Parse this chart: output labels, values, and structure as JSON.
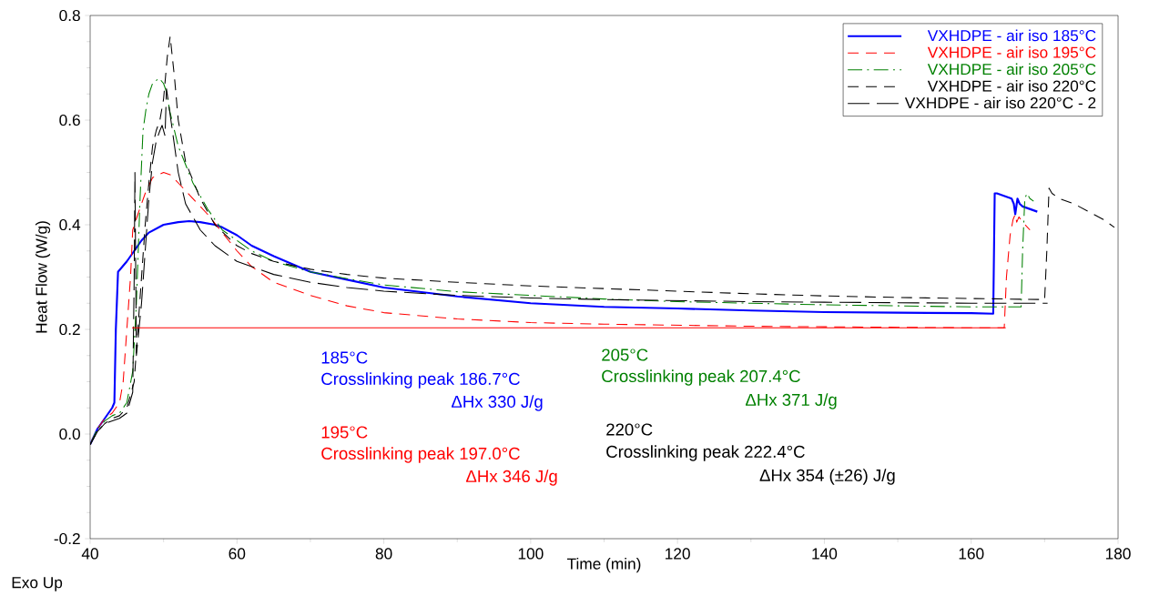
{
  "chart_data": {
    "type": "line",
    "xlabel": "Time (min)",
    "ylabel": "Heat Flow (W/g)",
    "xlim": [
      40,
      180
    ],
    "ylim": [
      -0.2,
      0.8
    ],
    "xticks": [
      40,
      60,
      80,
      100,
      120,
      140,
      160,
      180
    ],
    "yticks": [
      -0.2,
      {
        "value": 0,
        "label": "0.0"
      },
      0.2,
      0.4,
      0.6,
      0.8
    ],
    "grid": false,
    "legend": "top right",
    "marker": "none",
    "series": [
      {
        "name": "VXHDPE - air iso 185°C",
        "color": "#0000ff",
        "line_style": "solid",
        "x": [
          40,
          41,
          42,
          43,
          43.3,
          43.5,
          43.8,
          45,
          46,
          47,
          48,
          50,
          52,
          53.5,
          55,
          57,
          58,
          60,
          62,
          65,
          70,
          75,
          80,
          90,
          100,
          110,
          120,
          130,
          140,
          150,
          160,
          163,
          163.2,
          163.5,
          165.5,
          165.8,
          166.0,
          166.3,
          166.6,
          167,
          169
        ],
        "values": [
          -0.02,
          0.01,
          0.03,
          0.05,
          0.06,
          0.2,
          0.31,
          0.33,
          0.35,
          0.37,
          0.385,
          0.4,
          0.405,
          0.407,
          0.405,
          0.4,
          0.395,
          0.38,
          0.36,
          0.34,
          0.31,
          0.295,
          0.28,
          0.263,
          0.25,
          0.243,
          0.24,
          0.236,
          0.233,
          0.232,
          0.231,
          0.23,
          0.46,
          0.46,
          0.45,
          0.44,
          0.42,
          0.45,
          0.44,
          0.435,
          0.425
        ]
      },
      {
        "name": "VXHDPE - air iso 195°C",
        "color": "#ff0000",
        "line_style": "dashed",
        "x": [
          40,
          41,
          42,
          43,
          44,
          44.5,
          45,
          45.5,
          45.8,
          46.5,
          47.5,
          48.5,
          50,
          51,
          52,
          54,
          56,
          58,
          60,
          62,
          65,
          70,
          75,
          80,
          90,
          100,
          110,
          120,
          130,
          140,
          150,
          160,
          164.5,
          164.8,
          165.3,
          165.7,
          166.0,
          166.2,
          166.5,
          167,
          168
        ],
        "values": [
          -0.02,
          0.01,
          0.03,
          0.04,
          0.06,
          0.1,
          0.2,
          0.3,
          0.39,
          0.42,
          0.46,
          0.49,
          0.5,
          0.495,
          0.48,
          0.45,
          0.42,
          0.385,
          0.35,
          0.32,
          0.29,
          0.265,
          0.245,
          0.232,
          0.22,
          0.213,
          0.21,
          0.208,
          0.206,
          0.205,
          0.204,
          0.203,
          0.203,
          0.3,
          0.38,
          0.41,
          0.42,
          0.405,
          0.415,
          0.405,
          0.39
        ]
      },
      {
        "name": "VXHDPE - air iso 205°C",
        "color": "#008000",
        "line_style": "dashdot",
        "x": [
          40,
          41,
          42,
          43,
          44,
          45,
          45.8,
          46.3,
          46.8,
          47.2,
          47.6,
          48,
          48.5,
          49.4,
          50,
          50.5,
          50.8,
          52,
          54,
          56,
          58,
          60,
          62,
          65,
          70,
          75,
          80,
          90,
          100,
          110,
          120,
          130,
          140,
          150,
          160,
          166.8,
          167.0,
          167.3,
          167.6,
          168,
          168.5
        ],
        "values": [
          -0.02,
          0.01,
          0.025,
          0.035,
          0.04,
          0.06,
          0.12,
          0.25,
          0.45,
          0.58,
          0.62,
          0.65,
          0.67,
          0.68,
          0.67,
          0.65,
          0.62,
          0.55,
          0.48,
          0.43,
          0.39,
          0.37,
          0.35,
          0.33,
          0.31,
          0.297,
          0.285,
          0.272,
          0.265,
          0.258,
          0.253,
          0.25,
          0.247,
          0.245,
          0.243,
          0.243,
          0.35,
          0.45,
          0.46,
          0.45,
          0.445
        ]
      },
      {
        "name": "VXHDPE - air iso 220°C",
        "color": "#000000",
        "line_style": "dashed",
        "x": [
          40,
          41,
          42,
          43,
          44,
          45,
          46,
          46.5,
          47,
          47.5,
          48,
          48.5,
          49,
          49.5,
          50,
          50.5,
          50.9,
          51.5,
          52,
          53,
          55,
          57,
          60,
          62,
          65,
          70,
          75,
          80,
          90,
          100,
          110,
          120,
          130,
          140,
          150,
          160,
          170,
          170.3,
          170.6,
          171,
          172,
          174,
          176,
          178,
          179.5
        ],
        "values": [
          -0.02,
          0.005,
          0.02,
          0.03,
          0.035,
          0.05,
          0.1,
          0.2,
          0.3,
          0.4,
          0.48,
          0.55,
          0.58,
          0.6,
          0.64,
          0.72,
          0.76,
          0.68,
          0.6,
          0.52,
          0.45,
          0.4,
          0.36,
          0.345,
          0.33,
          0.315,
          0.305,
          0.298,
          0.29,
          0.283,
          0.278,
          0.273,
          0.268,
          0.264,
          0.261,
          0.259,
          0.257,
          0.35,
          0.47,
          0.46,
          0.45,
          0.44,
          0.425,
          0.41,
          0.395
        ]
      },
      {
        "name": "VXHDPE - air iso 220°C - 2",
        "color": "#000000",
        "line_style": "longdash",
        "x": [
          40,
          41,
          42,
          43,
          44,
          45,
          45.8,
          46.0,
          46.1,
          46.3,
          47,
          47.5,
          48,
          48.5,
          49,
          49.5,
          49.8,
          50.2,
          50.4,
          50.8,
          51.5,
          52,
          53,
          55,
          57,
          60,
          62,
          65,
          70,
          75,
          80,
          90,
          100,
          110,
          120,
          130,
          140,
          150,
          160,
          170,
          170.4
        ],
        "values": [
          -0.02,
          0.005,
          0.02,
          0.025,
          0.03,
          0.04,
          0.08,
          0.3,
          0.5,
          0.15,
          0.25,
          0.35,
          0.45,
          0.52,
          0.56,
          0.58,
          0.59,
          0.57,
          0.66,
          0.62,
          0.55,
          0.5,
          0.44,
          0.39,
          0.36,
          0.33,
          0.32,
          0.305,
          0.29,
          0.28,
          0.273,
          0.265,
          0.26,
          0.257,
          0.255,
          0.253,
          0.252,
          0.251,
          0.25,
          0.25,
          0.25
        ]
      },
      {
        "color": "#ff0000",
        "line_style": "solid",
        "x": [
          45.7,
          164.7
        ],
        "values": [
          0.203,
          0.203
        ]
      }
    ],
    "annotations": [
      "185°C",
      "Crosslinking peak 186.7°C",
      "ΔHx 330 J/g",
      "195°C",
      "Crosslinking peak 197.0°C",
      "ΔHx 346 J/g",
      "205°C",
      "Crosslinking peak 207.4°C",
      "ΔHx 371 J/g",
      "220°C",
      "Crosslinking peak 222.4°C",
      "ΔHx 354 (±26) J/g",
      "Exo Up"
    ]
  }
}
